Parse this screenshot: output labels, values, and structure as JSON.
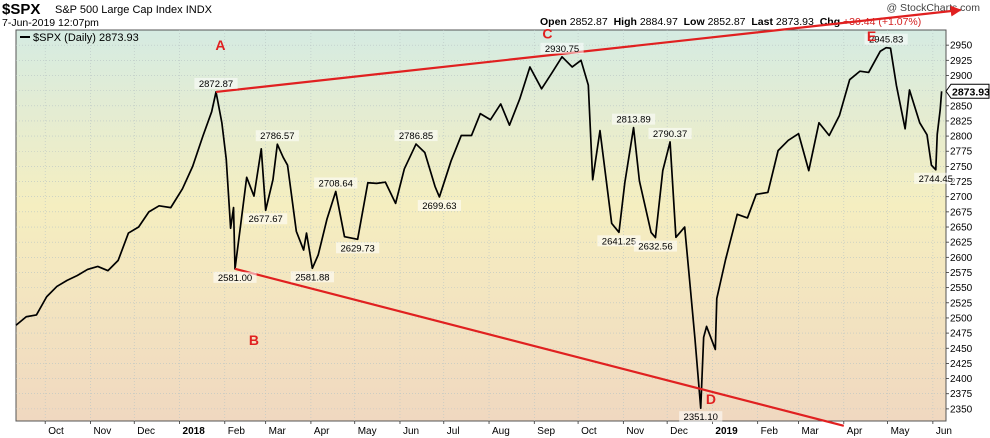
{
  "header": {
    "symbol": "$SPX",
    "name": "S&P 500 Large Cap Index",
    "exchange": "INDX",
    "datetime": "7-Jun-2019 12:07pm",
    "watermark": "@ StockCharts.com",
    "open_label": "Open",
    "open": "2852.87",
    "high_label": "High",
    "high": "2884.97",
    "low_label": "Low",
    "low": "2852.87",
    "last_label": "Last",
    "last": "2873.93",
    "chg_label": "Chg",
    "chg": "+30.44 (+1.07%)"
  },
  "legend": {
    "text": "$SPX (Daily) 2873.93"
  },
  "last_price_tag": "2873.93",
  "colors": {
    "price_line": "#000000",
    "trend_line": "#e02020",
    "wave_label": "#e02020",
    "last_tag_bg": "#ffffff",
    "grid": "#b8c4c4",
    "bg_top": "#d5ebe2",
    "bg_mid": "#f5eec0",
    "bg_bottom": "#f0d8c0"
  },
  "chart_data": {
    "type": "line",
    "title": "$SPX (Daily)",
    "ylim": [
      2330,
      2975
    ],
    "yticks": [
      2350,
      2375,
      2400,
      2425,
      2450,
      2475,
      2500,
      2525,
      2550,
      2575,
      2600,
      2625,
      2650,
      2675,
      2700,
      2725,
      2750,
      2775,
      2800,
      2825,
      2850,
      2875,
      2900,
      2925,
      2950
    ],
    "x_month_labels": [
      {
        "label": "Oct",
        "date": "2017-10-01"
      },
      {
        "label": "Nov",
        "date": "2017-11-01"
      },
      {
        "label": "Dec",
        "date": "2017-12-01"
      },
      {
        "label": "2018",
        "date": "2018-01-01",
        "bold": true
      },
      {
        "label": "Feb",
        "date": "2018-02-01"
      },
      {
        "label": "Mar",
        "date": "2018-03-01"
      },
      {
        "label": "Apr",
        "date": "2018-04-01"
      },
      {
        "label": "May",
        "date": "2018-05-01"
      },
      {
        "label": "Jun",
        "date": "2018-06-01"
      },
      {
        "label": "Jul",
        "date": "2018-07-01"
      },
      {
        "label": "Aug",
        "date": "2018-08-01"
      },
      {
        "label": "Sep",
        "date": "2018-09-01"
      },
      {
        "label": "Oct",
        "date": "2018-10-01"
      },
      {
        "label": "Nov",
        "date": "2018-11-01"
      },
      {
        "label": "Dec",
        "date": "2018-12-01"
      },
      {
        "label": "2019",
        "date": "2019-01-01",
        "bold": true
      },
      {
        "label": "Feb",
        "date": "2019-02-01"
      },
      {
        "label": "Mar",
        "date": "2019-03-01"
      },
      {
        "label": "Apr",
        "date": "2019-04-01"
      },
      {
        "label": "May",
        "date": "2019-05-01"
      },
      {
        "label": "Jun",
        "date": "2019-06-01"
      }
    ],
    "series": [
      {
        "points": [
          [
            "2017-09-11",
            2488
          ],
          [
            "2017-09-18",
            2502
          ],
          [
            "2017-09-25",
            2505
          ],
          [
            "2017-10-02",
            2535
          ],
          [
            "2017-10-09",
            2552
          ],
          [
            "2017-10-16",
            2562
          ],
          [
            "2017-10-23",
            2570
          ],
          [
            "2017-10-30",
            2580
          ],
          [
            "2017-11-06",
            2585
          ],
          [
            "2017-11-13",
            2578
          ],
          [
            "2017-11-20",
            2595
          ],
          [
            "2017-11-27",
            2640
          ],
          [
            "2017-12-04",
            2650
          ],
          [
            "2017-12-11",
            2675
          ],
          [
            "2017-12-18",
            2685
          ],
          [
            "2017-12-26",
            2682
          ],
          [
            "2018-01-03",
            2713
          ],
          [
            "2018-01-10",
            2750
          ],
          [
            "2018-01-17",
            2800
          ],
          [
            "2018-01-23",
            2840
          ],
          [
            "2018-01-26",
            2872.87
          ],
          [
            "2018-01-30",
            2822
          ],
          [
            "2018-02-02",
            2762
          ],
          [
            "2018-02-05",
            2648
          ],
          [
            "2018-02-07",
            2682
          ],
          [
            "2018-02-08",
            2581
          ],
          [
            "2018-02-12",
            2656
          ],
          [
            "2018-02-16",
            2732
          ],
          [
            "2018-02-21",
            2701
          ],
          [
            "2018-02-26",
            2779
          ],
          [
            "2018-03-01",
            2677.67
          ],
          [
            "2018-03-06",
            2728
          ],
          [
            "2018-03-09",
            2786.57
          ],
          [
            "2018-03-13",
            2765
          ],
          [
            "2018-03-16",
            2752
          ],
          [
            "2018-03-22",
            2643
          ],
          [
            "2018-03-27",
            2612
          ],
          [
            "2018-03-29",
            2640
          ],
          [
            "2018-04-02",
            2581.88
          ],
          [
            "2018-04-06",
            2604
          ],
          [
            "2018-04-12",
            2663
          ],
          [
            "2018-04-18",
            2708.64
          ],
          [
            "2018-04-24",
            2634
          ],
          [
            "2018-05-03",
            2629.73
          ],
          [
            "2018-05-10",
            2723
          ],
          [
            "2018-05-16",
            2722
          ],
          [
            "2018-05-22",
            2724
          ],
          [
            "2018-05-29",
            2689
          ],
          [
            "2018-06-04",
            2746
          ],
          [
            "2018-06-12",
            2786.85
          ],
          [
            "2018-06-18",
            2773
          ],
          [
            "2018-06-25",
            2717
          ],
          [
            "2018-06-28",
            2699.63
          ],
          [
            "2018-07-06",
            2759
          ],
          [
            "2018-07-13",
            2801
          ],
          [
            "2018-07-20",
            2801
          ],
          [
            "2018-07-26",
            2837
          ],
          [
            "2018-08-02",
            2827
          ],
          [
            "2018-08-09",
            2853
          ],
          [
            "2018-08-15",
            2818
          ],
          [
            "2018-08-22",
            2861
          ],
          [
            "2018-08-29",
            2914
          ],
          [
            "2018-09-06",
            2878
          ],
          [
            "2018-09-13",
            2904
          ],
          [
            "2018-09-20",
            2930.75
          ],
          [
            "2018-09-27",
            2914
          ],
          [
            "2018-10-03",
            2925
          ],
          [
            "2018-10-08",
            2884
          ],
          [
            "2018-10-11",
            2728
          ],
          [
            "2018-10-16",
            2809
          ],
          [
            "2018-10-24",
            2656
          ],
          [
            "2018-10-29",
            2641.25
          ],
          [
            "2018-11-02",
            2723
          ],
          [
            "2018-11-08",
            2813.89
          ],
          [
            "2018-11-12",
            2726
          ],
          [
            "2018-11-20",
            2641
          ],
          [
            "2018-11-23",
            2632.56
          ],
          [
            "2018-11-28",
            2743
          ],
          [
            "2018-12-03",
            2790.37
          ],
          [
            "2018-12-07",
            2633
          ],
          [
            "2018-12-13",
            2650
          ],
          [
            "2018-12-17",
            2546
          ],
          [
            "2018-12-20",
            2467
          ],
          [
            "2018-12-24",
            2351.1
          ],
          [
            "2018-12-26",
            2468
          ],
          [
            "2018-12-28",
            2486
          ],
          [
            "2019-01-03",
            2448
          ],
          [
            "2019-01-04",
            2532
          ],
          [
            "2019-01-10",
            2596
          ],
          [
            "2019-01-18",
            2671
          ],
          [
            "2019-01-25",
            2665
          ],
          [
            "2019-01-31",
            2704
          ],
          [
            "2019-02-08",
            2707
          ],
          [
            "2019-02-15",
            2776
          ],
          [
            "2019-02-22",
            2793
          ],
          [
            "2019-03-01",
            2804
          ],
          [
            "2019-03-08",
            2743
          ],
          [
            "2019-03-15",
            2822
          ],
          [
            "2019-03-22",
            2801
          ],
          [
            "2019-03-29",
            2834
          ],
          [
            "2019-04-05",
            2893
          ],
          [
            "2019-04-12",
            2907
          ],
          [
            "2019-04-18",
            2905
          ],
          [
            "2019-04-26",
            2940
          ],
          [
            "2019-04-30",
            2945.83
          ],
          [
            "2019-05-03",
            2945
          ],
          [
            "2019-05-07",
            2884
          ],
          [
            "2019-05-13",
            2812
          ],
          [
            "2019-05-16",
            2876
          ],
          [
            "2019-05-23",
            2822
          ],
          [
            "2019-05-28",
            2802
          ],
          [
            "2019-05-31",
            2752
          ],
          [
            "2019-06-03",
            2744.45
          ],
          [
            "2019-06-04",
            2803
          ],
          [
            "2019-06-06",
            2843
          ],
          [
            "2019-06-07",
            2873.93
          ]
        ]
      }
    ],
    "price_labels": [
      {
        "text": "2872.87",
        "date": "2018-01-26",
        "value": 2872.87,
        "pos": "above"
      },
      {
        "text": "2581.00",
        "date": "2018-02-08",
        "value": 2581.0,
        "pos": "below"
      },
      {
        "text": "2786.57",
        "date": "2018-03-09",
        "value": 2786.57,
        "pos": "above"
      },
      {
        "text": "2677.67",
        "date": "2018-03-01",
        "value": 2677.67,
        "pos": "below"
      },
      {
        "text": "2581.88",
        "date": "2018-04-02",
        "value": 2581.88,
        "pos": "below"
      },
      {
        "text": "2708.64",
        "date": "2018-04-18",
        "value": 2708.64,
        "pos": "above"
      },
      {
        "text": "2629.73",
        "date": "2018-05-03",
        "value": 2629.73,
        "pos": "below"
      },
      {
        "text": "2786.85",
        "date": "2018-06-12",
        "value": 2786.85,
        "pos": "above"
      },
      {
        "text": "2699.63",
        "date": "2018-06-28",
        "value": 2699.63,
        "pos": "below"
      },
      {
        "text": "2930.75",
        "date": "2018-09-20",
        "value": 2930.75,
        "pos": "above"
      },
      {
        "text": "2813.89",
        "date": "2018-11-08",
        "value": 2813.89,
        "pos": "above"
      },
      {
        "text": "2641.25",
        "date": "2018-10-29",
        "value": 2641.25,
        "pos": "below"
      },
      {
        "text": "2790.37",
        "date": "2018-12-03",
        "value": 2790.37,
        "pos": "above"
      },
      {
        "text": "2632.56",
        "date": "2018-11-23",
        "value": 2632.56,
        "pos": "below"
      },
      {
        "text": "2351.10",
        "date": "2018-12-24",
        "value": 2351.1,
        "pos": "below"
      },
      {
        "text": "2945.83",
        "date": "2019-04-30",
        "value": 2945.83,
        "pos": "above"
      },
      {
        "text": "2744.45",
        "date": "2019-06-03",
        "value": 2744.45,
        "pos": "below"
      }
    ],
    "wave_labels": [
      {
        "text": "A",
        "date": "2018-01-29",
        "value": 2942
      },
      {
        "text": "B",
        "date": "2018-02-21",
        "value": 2455
      },
      {
        "text": "C",
        "date": "2018-09-10",
        "value": 2961
      },
      {
        "text": "D",
        "date": "2018-12-31",
        "value": 2358
      },
      {
        "text": "E",
        "date": "2019-04-20",
        "value": 2957
      }
    ],
    "trend_lines": [
      {
        "from": {
          "date": "2018-01-26",
          "value": 2872.87
        },
        "to": {
          "date": "2019-06-20",
          "value": 3008
        },
        "arrow": true
      },
      {
        "from": {
          "date": "2018-02-08",
          "value": 2581.0
        },
        "to": {
          "date": "2019-04-01",
          "value": 2322
        },
        "arrow": false
      }
    ]
  }
}
